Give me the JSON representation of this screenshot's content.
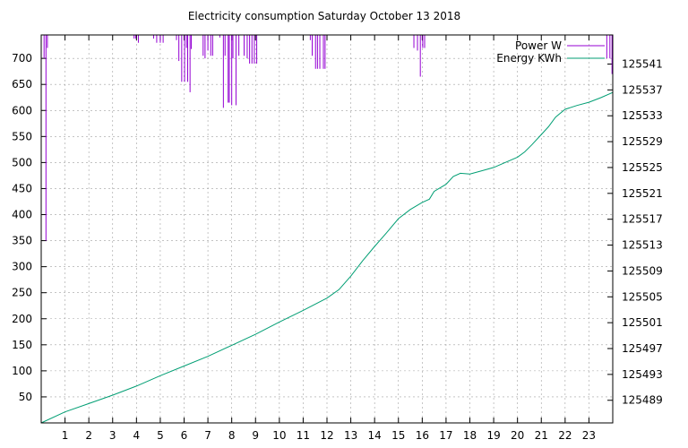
{
  "chart_data": {
    "type": "line",
    "title": "Electricity consumption Saturday October 13 2018",
    "x_ticks": [
      1,
      2,
      3,
      4,
      5,
      6,
      7,
      8,
      9,
      10,
      11,
      12,
      13,
      14,
      15,
      16,
      17,
      18,
      19,
      20,
      21,
      22,
      23
    ],
    "xlim": [
      0,
      24
    ],
    "ylim": [
      0,
      745
    ],
    "y_ticks": [
      50,
      100,
      150,
      200,
      250,
      300,
      350,
      400,
      450,
      500,
      550,
      600,
      650,
      700
    ],
    "y2lim": [
      125485.5,
      125545.5
    ],
    "y2_ticks": [
      125489,
      125493,
      125497,
      125501,
      125505,
      125509,
      125513,
      125517,
      125521,
      125525,
      125529,
      125533,
      125537,
      125541
    ],
    "grid": true,
    "legend_position": "top-right",
    "colors": {
      "power": "#9400d3",
      "energy": "#009e73"
    },
    "series": [
      {
        "name": "Power W",
        "axis": "y",
        "style": "impulse",
        "x": [
          0.12,
          0.2,
          0.26,
          3.9,
          3.97,
          4.08,
          4.72,
          4.85,
          5.0,
          5.12,
          5.68,
          5.78,
          5.9,
          6.02,
          6.1,
          6.15,
          6.25,
          6.3,
          6.8,
          6.88,
          7.0,
          7.12,
          7.2,
          7.5,
          7.65,
          7.72,
          7.85,
          7.9,
          8.0,
          8.05,
          8.18,
          8.3,
          8.52,
          8.65,
          8.75,
          8.85,
          8.95,
          9.05,
          11.3,
          11.38,
          11.52,
          11.6,
          11.7,
          11.85,
          11.92,
          15.65,
          15.8,
          15.92,
          16.02,
          16.1,
          23.75,
          23.88,
          23.97
        ],
        "values": [
          700,
          350,
          720,
          738,
          738,
          730,
          738,
          730,
          730,
          730,
          735,
          695,
          655,
          655,
          720,
          655,
          635,
          718,
          705,
          700,
          715,
          705,
          705,
          740,
          605,
          705,
          615,
          615,
          610,
          700,
          610,
          705,
          705,
          700,
          690,
          690,
          690,
          690,
          735,
          705,
          680,
          680,
          680,
          680,
          680,
          720,
          715,
          665,
          720,
          720,
          700,
          700,
          670
        ]
      },
      {
        "name": "Energy KWh",
        "axis": "y2",
        "style": "line",
        "x": [
          0,
          1,
          2,
          3,
          4,
          5,
          6,
          7,
          8,
          9,
          10,
          11,
          12,
          12.5,
          13,
          13.5,
          14,
          14.5,
          15,
          15.5,
          16,
          16.3,
          16.5,
          17,
          17.3,
          17.6,
          18,
          18.5,
          19,
          19.5,
          20,
          20.3,
          20.6,
          21,
          21.3,
          21.6,
          22,
          22.5,
          23,
          23.5,
          24
        ],
        "values": [
          125485.5,
          125487.2,
          125488.5,
          125489.8,
          125491.2,
          125492.8,
          125494.3,
          125495.8,
          125497.5,
          125499.2,
          125501.1,
          125502.9,
          125504.8,
          125506.1,
          125508.2,
          125510.6,
          125512.8,
          125514.9,
          125517.1,
          125518.5,
          125519.6,
          125520.1,
          125521.3,
          125522.4,
          125523.6,
          125524.1,
          125524,
          125524.5,
          125525,
          125525.8,
          125526.6,
          125527.4,
          125528.5,
          125530.1,
          125531.3,
          125532.8,
          125534.0,
          125534.6,
          125535.1,
          125535.8,
          125536.6
        ]
      }
    ]
  }
}
